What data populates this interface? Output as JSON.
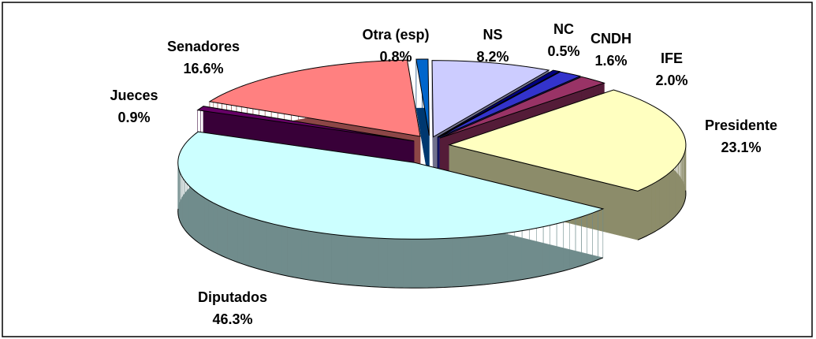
{
  "chart_data": {
    "type": "pie3d",
    "categories": [
      "Presidente",
      "Diputados",
      "Jueces",
      "Senadores",
      "Otra (esp)",
      "NS",
      "NC",
      "CNDH",
      "IFE"
    ],
    "values": [
      23.1,
      46.3,
      0.9,
      16.6,
      0.8,
      8.2,
      0.5,
      1.6,
      2.0
    ],
    "value_labels": [
      "23.1%",
      "46.3%",
      "0.9%",
      "16.6%",
      "0.8%",
      "8.2%",
      "0.5%",
      "1.6%",
      "2.0%"
    ],
    "colors": [
      "#ffffc0",
      "#ccffff",
      "#660066",
      "#ff8080",
      "#0066cc",
      "#ccccff",
      "#000080",
      "#3333cc",
      "#993366"
    ]
  }
}
